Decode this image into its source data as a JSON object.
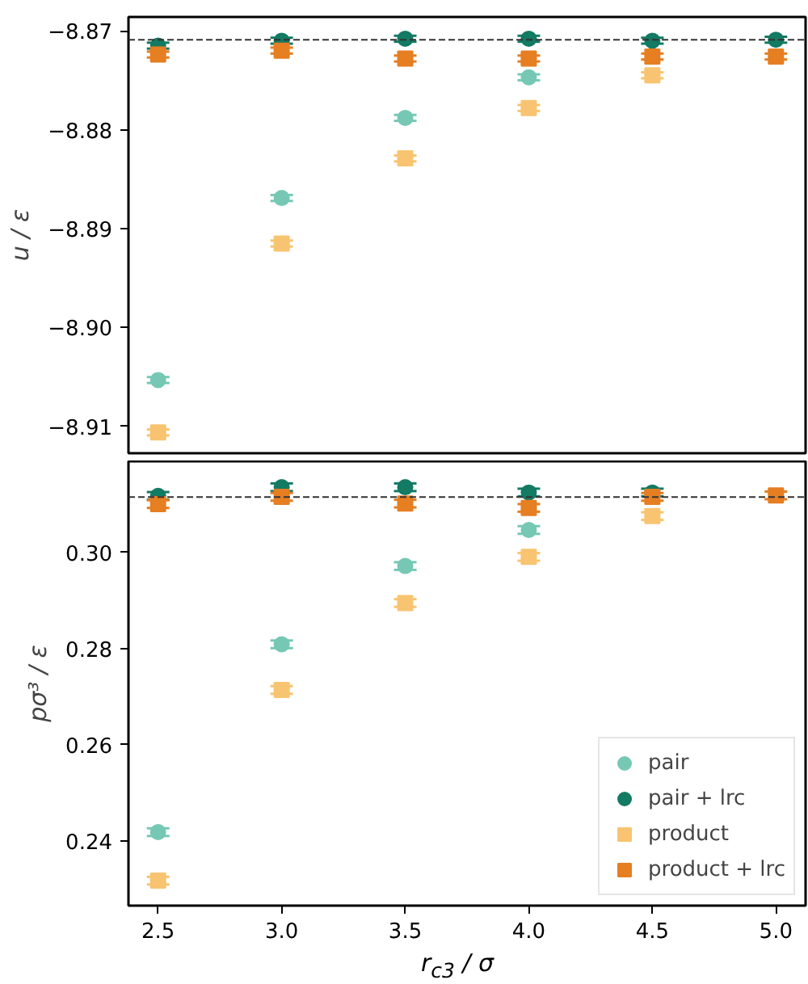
{
  "chart_data": [
    {
      "type": "scatter",
      "ylabel": "u / ε",
      "x": [
        2.5,
        3.0,
        3.5,
        4.0,
        4.5,
        5.0
      ],
      "xlim": [
        2.38,
        5.12
      ],
      "xticks": [
        2.5,
        3,
        3.5,
        4,
        4.5,
        5
      ],
      "ylim": [
        -8.9127,
        -8.8686
      ],
      "yticks": [
        -8.91,
        {
          "value": -8.9,
          "label": "−8.90"
        },
        -8.89,
        -8.88,
        -8.87
      ],
      "tick_labels": "y",
      "legend": false,
      "grid": false,
      "ref_lines": [
        {
          "axis": "y",
          "value": -8.8709,
          "color": "#333333",
          "line_style": "dashed"
        }
      ],
      "series": [
        {
          "color": "#76c8b5",
          "marker": "circle",
          "values": [
            -8.9053,
            -8.8869,
            -8.8788,
            -8.8747,
            null,
            null
          ],
          "errors": [
            0.0003,
            0.0003,
            0.0003,
            0.0003,
            null,
            null
          ]
        },
        {
          "color": "#137a63",
          "marker": "circle",
          "values": [
            -8.8715,
            -8.871,
            -8.8708,
            -8.8708,
            -8.871,
            -8.8709
          ],
          "errors": [
            0.0003,
            0.0003,
            0.0003,
            0.0003,
            0.0003,
            0.0003
          ]
        },
        {
          "color": "#f8c471",
          "marker": "square",
          "values": [
            -8.9106,
            -8.8915,
            -8.8829,
            -8.8778,
            -8.8745,
            null
          ],
          "errors": [
            0.0003,
            0.0003,
            0.0003,
            0.0003,
            0.0003,
            null
          ]
        },
        {
          "color": "#e67e22",
          "marker": "square",
          "values": [
            -8.8724,
            -8.872,
            -8.8728,
            -8.8728,
            -8.8726,
            -8.8726
          ],
          "errors": [
            0.0003,
            0.0003,
            0.0003,
            0.0003,
            0.0003,
            0.0003
          ]
        }
      ]
    },
    {
      "type": "scatter",
      "ylabel": "pσ³ / ε",
      "xlabel": "r$_{c3}$ / σ",
      "x": [
        2.5,
        3.0,
        3.5,
        4.0,
        4.5,
        5.0
      ],
      "xlim": [
        2.38,
        5.12
      ],
      "xticks": [
        2.5,
        {
          "value": 3,
          "label": "3.0"
        },
        3.5,
        {
          "value": 4,
          "label": "4.0"
        },
        4.5,
        {
          "value": 5,
          "label": "5.0"
        }
      ],
      "ylim": [
        0.2265,
        0.319
      ],
      "yticks": [
        0.24,
        0.26,
        0.28,
        {
          "value": 0.3,
          "label": "0.30"
        }
      ],
      "legend": "bottom right",
      "grid": false,
      "ref_lines": [
        {
          "axis": "y",
          "value": 0.31155,
          "color": "#333333",
          "line_style": "dashed"
        }
      ],
      "series": [
        {
          "name": "pair",
          "color": "#76c8b5",
          "marker": "circle",
          "values": [
            0.2418,
            0.2809,
            0.2972,
            0.3047,
            null,
            null
          ],
          "errors": [
            0.0008,
            0.0008,
            0.0008,
            0.0008,
            null,
            null
          ]
        },
        {
          "name": "pair + lrc",
          "color": "#137a63",
          "marker": "circle",
          "values": [
            0.3118,
            0.3136,
            0.3136,
            0.3125,
            0.3125,
            null
          ],
          "errors": [
            0.0008,
            0.0008,
            0.0008,
            0.0008,
            0.0008,
            null
          ]
        },
        {
          "name": "product",
          "color": "#f8c471",
          "marker": "square",
          "values": [
            0.2317,
            0.2714,
            0.2895,
            0.2991,
            0.3076,
            null
          ],
          "errors": [
            0.0008,
            0.0008,
            0.0008,
            0.0008,
            0.0008,
            null
          ]
        },
        {
          "name": "product + lrc",
          "color": "#e67e22",
          "marker": "square",
          "values": [
            0.3101,
            0.3116,
            0.3102,
            0.3093,
            0.3116,
            0.3119
          ],
          "errors": [
            0.0008,
            0.0008,
            0.0008,
            0.0008,
            0.0008,
            0.0008
          ]
        }
      ]
    }
  ]
}
